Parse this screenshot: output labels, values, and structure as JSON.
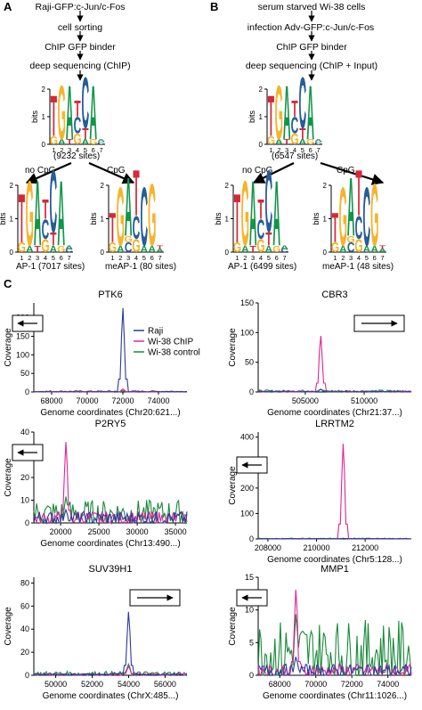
{
  "panels": {
    "A": {
      "letter": "A",
      "steps": [
        "Raji-GFP:c-Jun/c-Fos",
        "cell sorting",
        "ChIP GFP binder",
        "deep sequencing (ChIP)"
      ],
      "main_logo_sites": "(9232 sites)",
      "branch_left": "no CpG",
      "branch_right": "CpG",
      "left_logo_caption": "AP-1 (7017 sites)",
      "right_logo_caption": "meAP-1 (80 sites)"
    },
    "B": {
      "letter": "B",
      "steps": [
        "serum starved Wi-38 cells",
        "infection Adv-GFP:c-Jun/c-Fos",
        "ChIP GFP binder",
        "deep sequencing (ChIP + Input)"
      ],
      "main_logo_sites": "(6547 sites)",
      "branch_left": "no CpG",
      "branch_right": "CpG",
      "left_logo_caption": "AP-1 (6499 sites)",
      "right_logo_caption": "meAP-1 (48 sites)"
    },
    "C": {
      "letter": "C"
    }
  },
  "logo": {
    "ylabel": "bits",
    "positions": [
      "1",
      "2",
      "3",
      "4",
      "5",
      "6",
      "7"
    ],
    "yticks_main": [
      "2",
      "1",
      "0"
    ],
    "yticks_small": [
      "2",
      "1",
      "0"
    ]
  },
  "colors": {
    "A": "#109648",
    "C": "#255c99",
    "G": "#f7b32b",
    "T": "#d62839",
    "raji": "#2b3a9c",
    "wi38_chip": "#e0249a",
    "wi38_control": "#1a8a3a"
  },
  "legend": {
    "raji": "Raji",
    "wi38_chip": "Wi-38 ChIP",
    "wi38_control": "Wi-38 control"
  },
  "chart_data": [
    {
      "type": "line",
      "title": "PTK6",
      "xlabel": "Genome coordinates (Chr20:621...)",
      "ylabel": "Coverage",
      "xticks": [
        "68000",
        "70000",
        "72000",
        "74000"
      ],
      "xlim": [
        67000,
        75600
      ],
      "yticks": [
        "0",
        "50",
        "100",
        "150",
        "200"
      ],
      "ylim": [
        0,
        240
      ],
      "arrow_direction": "left",
      "peak_x": 72000,
      "series": [
        {
          "name": "Raji",
          "peak": 230,
          "baseline": 2
        },
        {
          "name": "Wi-38 ChIP",
          "peak": 8,
          "baseline": 1
        },
        {
          "name": "Wi-38 control",
          "peak": 4,
          "baseline": 1
        }
      ]
    },
    {
      "type": "line",
      "title": "CBR3",
      "xlabel": "Genome coordinates (Chr21:37...)",
      "ylabel": "Coverage",
      "xticks": [
        "505000",
        "510000"
      ],
      "xlim": [
        501000,
        514000
      ],
      "yticks": [
        "0",
        "50",
        "100",
        "150"
      ],
      "ylim": [
        0,
        150
      ],
      "arrow_direction": "right",
      "peak_x": 506300,
      "series": [
        {
          "name": "Raji",
          "peak": 5,
          "baseline": 1
        },
        {
          "name": "Wi-38 ChIP",
          "peak": 100,
          "baseline": 1
        },
        {
          "name": "Wi-38 control",
          "peak": 5,
          "baseline": 2
        }
      ]
    },
    {
      "type": "line",
      "title": "P2RY5",
      "xlabel": "Genome coordinates (Chr13:490...)",
      "ylabel": "Coverage",
      "xticks": [
        "20000",
        "25000",
        "30000",
        "35000"
      ],
      "xlim": [
        16500,
        36500
      ],
      "yticks": [
        "0",
        "10",
        "20",
        "30",
        "40"
      ],
      "ylim": [
        0,
        40
      ],
      "arrow_direction": "left",
      "peak_x": 20700,
      "series": [
        {
          "name": "Raji",
          "peak": 6,
          "baseline": 3
        },
        {
          "name": "Wi-38 ChIP",
          "peak": 37,
          "baseline": 3
        },
        {
          "name": "Wi-38 control",
          "peak": 12,
          "baseline": 6
        }
      ]
    },
    {
      "type": "line",
      "title": "LRRTM2",
      "xlabel": "Genome coordinates (Chr5:128...)",
      "ylabel": "Coverage",
      "xticks": [
        "208000",
        "210000",
        "212000"
      ],
      "xlim": [
        207600,
        213900
      ],
      "yticks": [
        "0",
        "100",
        "200",
        "300",
        "400"
      ],
      "ylim": [
        0,
        420
      ],
      "arrow_direction": "left",
      "peak_x": 211100,
      "series": [
        {
          "name": "Raji",
          "peak": 2,
          "baseline": 1
        },
        {
          "name": "Wi-38 ChIP",
          "peak": 390,
          "baseline": 1
        },
        {
          "name": "Wi-38 control",
          "peak": 3,
          "baseline": 2
        }
      ]
    },
    {
      "type": "line",
      "title": "SUV39H1",
      "xlabel": "Genome coordinates (ChrX:485...)",
      "ylabel": "Coverage",
      "xticks": [
        "50000",
        "52000",
        "54000",
        "56000"
      ],
      "xlim": [
        48800,
        57200
      ],
      "yticks": [
        "0",
        "20",
        "40",
        "60",
        "80"
      ],
      "ylim": [
        0,
        85
      ],
      "arrow_direction": "right",
      "peak_x": 54000,
      "series": [
        {
          "name": "Raji",
          "peak": 57,
          "baseline": 1
        },
        {
          "name": "Wi-38 ChIP",
          "peak": 8,
          "baseline": 1
        },
        {
          "name": "Wi-38 control",
          "peak": 10,
          "baseline": 2
        }
      ]
    },
    {
      "type": "line",
      "title": "MMP1",
      "xlabel": "Genome coordinates (Chr11:1026...)",
      "ylabel": "Coverage",
      "xticks": [
        "68000",
        "70000",
        "72000",
        "74000"
      ],
      "xlim": [
        66800,
        75300
      ],
      "yticks": [
        "0",
        "5",
        "10",
        "15"
      ],
      "ylim": [
        0,
        15
      ],
      "arrow_direction": "left",
      "peak_x": 68900,
      "series": [
        {
          "name": "Raji",
          "peak": 3,
          "baseline": 1
        },
        {
          "name": "Wi-38 ChIP",
          "peak": 14,
          "baseline": 1
        },
        {
          "name": "Wi-38 control",
          "peak": 10,
          "baseline": 5
        }
      ]
    }
  ]
}
